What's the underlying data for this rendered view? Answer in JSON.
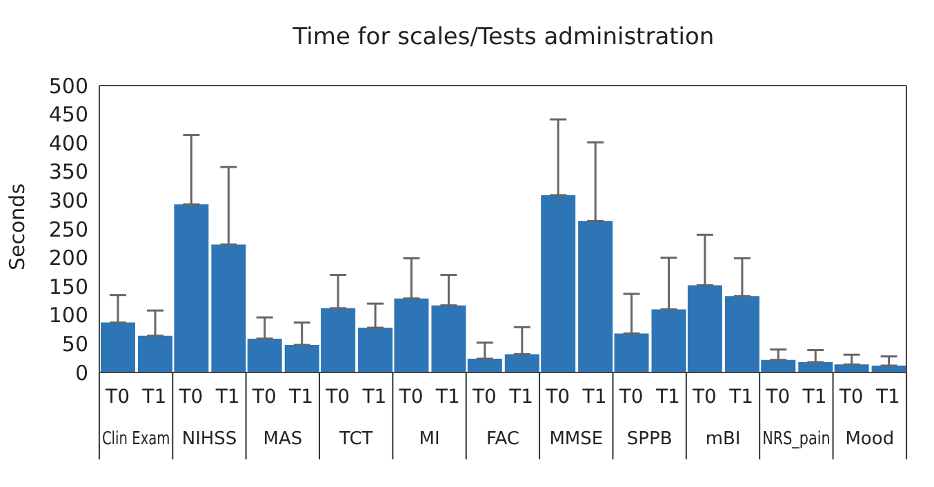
{
  "chart_data": {
    "type": "bar",
    "title": "Time for scales/Tests administration",
    "ylabel": "Seconds",
    "categories": [
      "Clin Exam",
      "NIHSS",
      "MAS",
      "TCT",
      "MI",
      "FAC",
      "MMSE",
      "SPPB",
      "mBI",
      "NRS_pain",
      "Mood"
    ],
    "series": [
      {
        "name": "T0",
        "color": "#2e75b6",
        "values": [
          87,
          293,
          59,
          112,
          129,
          24,
          309,
          68,
          152,
          22,
          14
        ],
        "errors": [
          [
            87,
            135
          ],
          [
            293,
            414
          ],
          [
            59,
            96
          ],
          [
            112,
            170
          ],
          [
            129,
            199
          ],
          [
            24,
            52
          ],
          [
            309,
            441
          ],
          [
            68,
            137
          ],
          [
            152,
            240
          ],
          [
            22,
            40
          ],
          [
            14,
            31
          ]
        ]
      },
      {
        "name": "T1",
        "color": "#2e75b6",
        "values": [
          64,
          223,
          48,
          78,
          117,
          32,
          264,
          110,
          133,
          18,
          12
        ],
        "errors": [
          [
            64,
            108
          ],
          [
            223,
            358
          ],
          [
            48,
            87
          ],
          [
            78,
            120
          ],
          [
            117,
            170
          ],
          [
            32,
            79
          ],
          [
            264,
            401
          ],
          [
            110,
            200
          ],
          [
            133,
            199
          ],
          [
            18,
            39
          ],
          [
            12,
            28
          ]
        ]
      }
    ],
    "ylim": [
      0,
      500
    ],
    "yticks": [
      0,
      50,
      100,
      150,
      200,
      250,
      300,
      350,
      400,
      450,
      500
    ],
    "grid": false
  }
}
